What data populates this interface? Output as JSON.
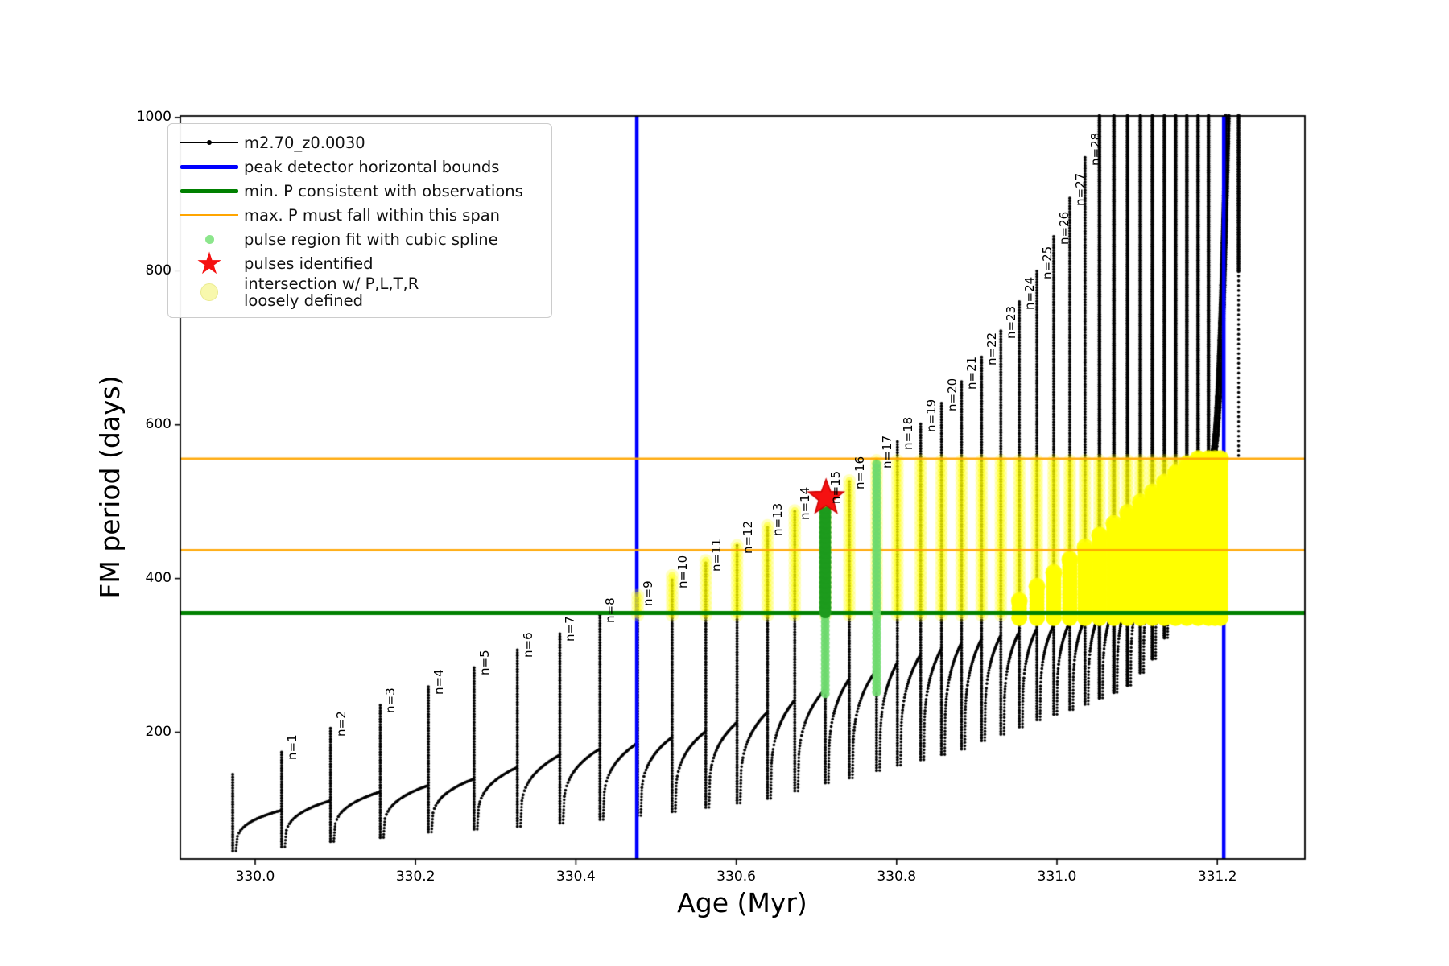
{
  "figure": {
    "background": "#ffffff"
  },
  "legend": {
    "items": [
      {
        "label": "m2.70_z0.0030",
        "marker": "line-dot",
        "color": "#000000"
      },
      {
        "label": "peak detector horizontal bounds",
        "marker": "line-thick",
        "color": "#0000ff"
      },
      {
        "label": "min. P consistent with observations",
        "marker": "line-thick",
        "color": "#008000"
      },
      {
        "label": "max. P must fall within this span",
        "marker": "line-thin",
        "color": "#ffa500"
      },
      {
        "label": "pulse region fit with cubic spline",
        "marker": "dot-small",
        "color": "#8ce68c"
      },
      {
        "label": "pulses identified",
        "marker": "star",
        "color": "#f51111"
      },
      {
        "label": "intersection w/ P,L,T,R\nloosely defined",
        "marker": "dot-large",
        "color": "#f8f8ad"
      }
    ]
  },
  "chart_data": {
    "type": "line",
    "title": "",
    "xlabel": "Age (Myr)",
    "ylabel": "FM period (days)",
    "xlim": [
      329.907,
      331.309
    ],
    "ylim": [
      35,
      1002
    ],
    "grid": false,
    "legend_position": "upper left",
    "xticks": [
      330.0,
      330.2,
      330.4,
      330.6,
      330.8,
      331.0,
      331.2
    ],
    "xtick_labels": [
      "330.0",
      "330.2",
      "330.4",
      "330.6",
      "330.8",
      "331.0",
      "331.2"
    ],
    "yticks": [
      200,
      400,
      600,
      800,
      1000
    ],
    "ytick_labels": [
      "200",
      "400",
      "600",
      "800",
      "1000"
    ],
    "series_name": "m2.70_z0.0030",
    "first_unlabeled_spike": {
      "age": 329.972,
      "peak_period": 145
    },
    "pulses": [
      {
        "n": 1,
        "label": "n=1",
        "age": 330.033,
        "peak_period": 174
      },
      {
        "n": 2,
        "label": "n=2",
        "age": 330.094,
        "peak_period": 205
      },
      {
        "n": 3,
        "label": "n=3",
        "age": 330.156,
        "peak_period": 235
      },
      {
        "n": 4,
        "label": "n=4",
        "age": 330.216,
        "peak_period": 259
      },
      {
        "n": 5,
        "label": "n=5",
        "age": 330.273,
        "peak_period": 284
      },
      {
        "n": 6,
        "label": "n=6",
        "age": 330.327,
        "peak_period": 307
      },
      {
        "n": 7,
        "label": "n=7",
        "age": 330.38,
        "peak_period": 328
      },
      {
        "n": 8,
        "label": "n=8",
        "age": 330.43,
        "peak_period": 352
      },
      {
        "n": 9,
        "label": "n=9",
        "age": 330.477,
        "peak_period": 374
      },
      {
        "n": 10,
        "label": "n=10",
        "age": 330.52,
        "peak_period": 398
      },
      {
        "n": 11,
        "label": "n=11",
        "age": 330.562,
        "peak_period": 420
      },
      {
        "n": 12,
        "label": "n=12",
        "age": 330.601,
        "peak_period": 443
      },
      {
        "n": 13,
        "label": "n=13",
        "age": 330.639,
        "peak_period": 466
      },
      {
        "n": 14,
        "label": "n=14",
        "age": 330.673,
        "peak_period": 487
      },
      {
        "n": 15,
        "label": "n=15",
        "age": 330.711,
        "peak_period": 507
      },
      {
        "n": 16,
        "label": "n=16",
        "age": 330.741,
        "peak_period": 526
      },
      {
        "n": 17,
        "label": "n=17",
        "age": 330.775,
        "peak_period": 554
      },
      {
        "n": 18,
        "label": "n=18",
        "age": 330.801,
        "peak_period": 578
      },
      {
        "n": 19,
        "label": "n=19",
        "age": 330.83,
        "peak_period": 601
      },
      {
        "n": 20,
        "label": "n=20",
        "age": 330.856,
        "peak_period": 628
      },
      {
        "n": 21,
        "label": "n=21",
        "age": 330.881,
        "peak_period": 656
      },
      {
        "n": 22,
        "label": "n=22",
        "age": 330.906,
        "peak_period": 688
      },
      {
        "n": 23,
        "label": "n=23",
        "age": 330.93,
        "peak_period": 722
      },
      {
        "n": 24,
        "label": "n=24",
        "age": 330.953,
        "peak_period": 760
      },
      {
        "n": 25,
        "label": "n=25",
        "age": 330.975,
        "peak_period": 800
      },
      {
        "n": 26,
        "label": "n=26",
        "age": 330.996,
        "peak_period": 845
      },
      {
        "n": 27,
        "label": "n=27",
        "age": 331.016,
        "peak_period": 895
      },
      {
        "n": 28,
        "label": "n=28",
        "age": 331.035,
        "peak_period": 948
      }
    ],
    "clipped_spike_ages": [
      331.053,
      331.071,
      331.088,
      331.104,
      331.119,
      331.134,
      331.148,
      331.162,
      331.176,
      331.189
    ],
    "min_envelope": [
      [
        329.952,
        44
      ],
      [
        330.0,
        47
      ],
      [
        330.04,
        51
      ],
      [
        330.1,
        58
      ],
      [
        330.16,
        63
      ],
      [
        330.22,
        70
      ],
      [
        330.28,
        74
      ],
      [
        330.34,
        78
      ],
      [
        330.4,
        83
      ],
      [
        330.46,
        89
      ],
      [
        330.52,
        96
      ],
      [
        330.58,
        104
      ],
      [
        330.64,
        113
      ],
      [
        330.71,
        133
      ],
      [
        330.74,
        139
      ],
      [
        330.775,
        149
      ],
      [
        330.805,
        157
      ],
      [
        330.83,
        163
      ],
      [
        330.86,
        171
      ],
      [
        330.885,
        178
      ],
      [
        330.91,
        189
      ],
      [
        330.933,
        197
      ],
      [
        330.955,
        206
      ],
      [
        330.976,
        215
      ],
      [
        330.996,
        222
      ],
      [
        331.016,
        228
      ],
      [
        331.036,
        235
      ],
      [
        331.053,
        243
      ],
      [
        331.07,
        250
      ],
      [
        331.088,
        257
      ],
      [
        331.12,
        290
      ],
      [
        331.15,
        345
      ],
      [
        331.165,
        395
      ],
      [
        331.18,
        465
      ],
      [
        331.19,
        530
      ],
      [
        331.2,
        575
      ]
    ],
    "shoulder_envelope": [
      [
        329.97,
        85
      ],
      [
        330.09,
        110
      ],
      [
        330.16,
        123
      ],
      [
        330.22,
        131
      ],
      [
        330.28,
        140
      ],
      [
        330.33,
        155
      ],
      [
        330.38,
        170
      ],
      [
        330.43,
        178
      ],
      [
        330.48,
        186
      ],
      [
        330.56,
        200
      ],
      [
        330.6,
        212
      ],
      [
        330.64,
        226
      ],
      [
        330.67,
        240
      ],
      [
        330.71,
        255
      ],
      [
        330.74,
        268
      ],
      [
        330.78,
        282
      ],
      [
        330.83,
        300
      ],
      [
        330.88,
        315
      ],
      [
        330.93,
        325
      ],
      [
        330.98,
        335
      ],
      [
        331.03,
        345
      ],
      [
        331.08,
        365
      ],
      [
        331.12,
        395
      ],
      [
        331.15,
        450
      ],
      [
        331.17,
        500
      ],
      [
        331.185,
        540
      ],
      [
        331.196,
        560
      ]
    ],
    "final_rise": {
      "age_start": 331.192,
      "age_end": 331.2105,
      "period_start": 560,
      "period_end": 1002
    },
    "final_tail": {
      "age": 331.2265,
      "from": 1002,
      "to": 560
    },
    "peak_detector_bounds": {
      "label": "peak detector horizontal bounds",
      "color": "#0000ff",
      "x": [
        330.476,
        331.208
      ]
    },
    "min_p_line": {
      "label": "min. P consistent with observations",
      "color": "#008000",
      "y": 355
    },
    "max_p_span": {
      "label": "max. P must fall within this span",
      "color": "#ffa500",
      "y": [
        437,
        556
      ]
    },
    "pulse_region_spline": {
      "label": "pulse region fit with cubic spline",
      "color": "#6fda6f",
      "columns": [
        {
          "age": 330.711,
          "from": 250,
          "to": 354
        },
        {
          "age": 330.775,
          "from": 252,
          "to": 552
        }
      ],
      "dense_bar": {
        "age": 330.711,
        "from": 356,
        "to": 496,
        "color": "#1d9b1d"
      },
      "hidden_orange_dot": {
        "age": 330.711,
        "period": 498,
        "color": "#ff8c00"
      }
    },
    "pulses_identified": {
      "label": "pulses identified",
      "color": "#f51111",
      "points": [
        {
          "age": 330.712,
          "period": 505
        }
      ]
    },
    "intersection_region": {
      "label": "intersection w/ P,L,T,R loosely defined",
      "color": "#ffff00",
      "ring_span": [
        352,
        556
      ],
      "first_pulse": 9,
      "solid_from_age": 330.94,
      "diagonal": {
        "age0": 330.94,
        "period0": 360,
        "age1": 331.17,
        "period1": 556
      },
      "solid_extra_ages": [
        331.197,
        331.204
      ],
      "right_edge_age": 331.205
    }
  }
}
